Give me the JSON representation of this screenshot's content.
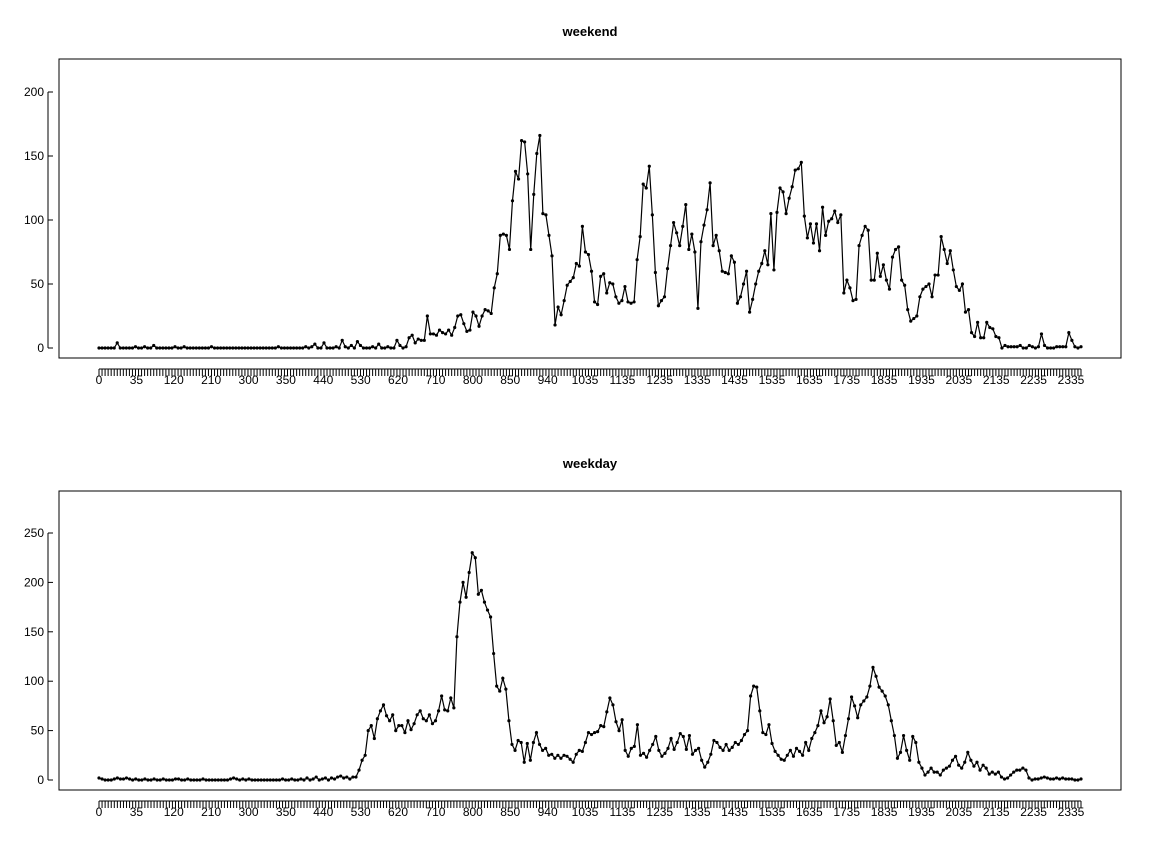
{
  "chart_data": [
    {
      "type": "line",
      "title": "weekend",
      "xlabel": "",
      "ylabel": "",
      "ylim": [
        0,
        220
      ],
      "yticks": [
        0,
        50,
        100,
        150,
        200
      ],
      "xtick_labels": [
        "0",
        "35",
        "120",
        "210",
        "300",
        "350",
        "440",
        "530",
        "620",
        "710",
        "800",
        "850",
        "940",
        "1035",
        "1135",
        "1235",
        "1335",
        "1435",
        "1535",
        "1635",
        "1735",
        "1835",
        "1935",
        "2035",
        "2135",
        "2235",
        "2335"
      ],
      "y": [
        0,
        0,
        0,
        0,
        0,
        0,
        4,
        0,
        0,
        0,
        0,
        0,
        1,
        0,
        0,
        1,
        0,
        0,
        2,
        0,
        0,
        0,
        0,
        0,
        0,
        1,
        0,
        0,
        1,
        0,
        0,
        0,
        0,
        0,
        0,
        0,
        0,
        1,
        0,
        0,
        0,
        0,
        0,
        0,
        0,
        0,
        0,
        0,
        0,
        0,
        0,
        0,
        0,
        0,
        0,
        0,
        0,
        0,
        0,
        1,
        0,
        0,
        0,
        0,
        0,
        0,
        0,
        0,
        1,
        0,
        1,
        3,
        0,
        0,
        4,
        0,
        0,
        0,
        1,
        0,
        6,
        1,
        0,
        2,
        0,
        5,
        2,
        0,
        0,
        0,
        1,
        0,
        3,
        0,
        0,
        1,
        0,
        0,
        6,
        2,
        0,
        1,
        8,
        10,
        4,
        7,
        6,
        6,
        25,
        11,
        11,
        10,
        14,
        12,
        11,
        14,
        10,
        16,
        25,
        26,
        19,
        13,
        14,
        28,
        25,
        17,
        25,
        30,
        29,
        27,
        47,
        58,
        88,
        89,
        88,
        77,
        115,
        138,
        132,
        162,
        161,
        136,
        77,
        120,
        152,
        166,
        105,
        104,
        88,
        72,
        18,
        32,
        26,
        37,
        49,
        52,
        55,
        66,
        64,
        95,
        75,
        73,
        60,
        36,
        34,
        56,
        58,
        43,
        51,
        50,
        40,
        35,
        37,
        48,
        36,
        35,
        36,
        69,
        87,
        128,
        125,
        142,
        104,
        59,
        33,
        37,
        40,
        62,
        80,
        98,
        90,
        80,
        95,
        112,
        77,
        89,
        75,
        31,
        83,
        96,
        108,
        129,
        80,
        88,
        76,
        60,
        59,
        58,
        72,
        67,
        35,
        40,
        50,
        60,
        28,
        38,
        50,
        60,
        66,
        76,
        65,
        105,
        61,
        106,
        125,
        122,
        105,
        117,
        126,
        139,
        140,
        145,
        103,
        86,
        97,
        82,
        97,
        76,
        110,
        88,
        99,
        101,
        107,
        98,
        104,
        43,
        53,
        47,
        37,
        38,
        80,
        88,
        95,
        92,
        53,
        53,
        74,
        56,
        65,
        53,
        46,
        71,
        77,
        79,
        53,
        49,
        30,
        21,
        23,
        25,
        40,
        46,
        48,
        50,
        40,
        57,
        57,
        87,
        77,
        66,
        76,
        61,
        48,
        45,
        50,
        28,
        30,
        12,
        9,
        20,
        8,
        8,
        20,
        16,
        15,
        9,
        8,
        0,
        2,
        1,
        1,
        1,
        1,
        2,
        0,
        0,
        2,
        1,
        0,
        1,
        11,
        2,
        0,
        0,
        0,
        1,
        1,
        1,
        1,
        12,
        6,
        1,
        0,
        1
      ]
    },
    {
      "type": "line",
      "title": "weekday",
      "xlabel": "",
      "ylabel": "",
      "ylim": [
        0,
        290
      ],
      "yticks": [
        0,
        50,
        100,
        150,
        200,
        250
      ],
      "xtick_labels": [
        "0",
        "35",
        "120",
        "210",
        "300",
        "350",
        "440",
        "530",
        "620",
        "710",
        "800",
        "850",
        "940",
        "1035",
        "1135",
        "1235",
        "1335",
        "1435",
        "1535",
        "1635",
        "1735",
        "1835",
        "1935",
        "2035",
        "2135",
        "2235",
        "2335"
      ],
      "y": [
        2,
        1,
        0,
        0,
        0,
        1,
        2,
        1,
        1,
        2,
        1,
        0,
        1,
        0,
        0,
        1,
        0,
        0,
        1,
        0,
        0,
        1,
        0,
        0,
        0,
        1,
        1,
        0,
        0,
        1,
        0,
        0,
        0,
        0,
        1,
        0,
        0,
        0,
        0,
        0,
        0,
        0,
        0,
        1,
        2,
        1,
        0,
        1,
        0,
        1,
        0,
        0,
        0,
        0,
        0,
        0,
        0,
        0,
        0,
        0,
        1,
        0,
        0,
        1,
        0,
        0,
        1,
        0,
        2,
        0,
        1,
        3,
        0,
        1,
        2,
        0,
        2,
        1,
        3,
        4,
        2,
        3,
        1,
        3,
        3,
        10,
        20,
        25,
        50,
        55,
        42,
        62,
        70,
        76,
        65,
        60,
        66,
        50,
        55,
        55,
        48,
        60,
        51,
        57,
        66,
        70,
        62,
        60,
        66,
        57,
        60,
        70,
        85,
        71,
        70,
        83,
        73,
        145,
        180,
        200,
        185,
        210,
        230,
        225,
        188,
        192,
        180,
        172,
        165,
        128,
        95,
        90,
        103,
        92,
        60,
        36,
        30,
        40,
        38,
        18,
        37,
        20,
        38,
        48,
        36,
        30,
        32,
        25,
        26,
        22,
        25,
        22,
        25,
        24,
        21,
        18,
        26,
        30,
        29,
        38,
        48,
        46,
        48,
        49,
        55,
        54,
        69,
        83,
        76,
        59,
        50,
        61,
        30,
        24,
        32,
        34,
        56,
        25,
        27,
        23,
        30,
        36,
        44,
        30,
        24,
        27,
        32,
        42,
        31,
        38,
        47,
        44,
        31,
        45,
        26,
        30,
        32,
        20,
        13,
        18,
        26,
        40,
        38,
        33,
        30,
        36,
        30,
        33,
        38,
        36,
        40,
        46,
        50,
        85,
        95,
        94,
        70,
        48,
        46,
        56,
        37,
        29,
        25,
        21,
        20,
        25,
        30,
        24,
        32,
        29,
        25,
        38,
        30,
        42,
        48,
        55,
        70,
        58,
        64,
        82,
        60,
        35,
        38,
        28,
        45,
        62,
        84,
        75,
        63,
        76,
        80,
        84,
        95,
        114,
        105,
        94,
        90,
        85,
        76,
        60,
        45,
        22,
        28,
        45,
        30,
        20,
        44,
        38,
        18,
        12,
        5,
        8,
        12,
        8,
        8,
        5,
        10,
        12,
        14,
        20,
        24,
        15,
        12,
        18,
        28,
        20,
        14,
        18,
        10,
        15,
        12,
        6,
        8,
        6,
        8,
        3,
        1,
        2,
        5,
        8,
        10,
        10,
        12,
        10,
        2,
        0,
        1,
        1,
        2,
        3,
        2,
        1,
        1,
        2,
        1,
        2,
        1,
        1,
        1,
        0,
        0,
        1
      ]
    }
  ]
}
